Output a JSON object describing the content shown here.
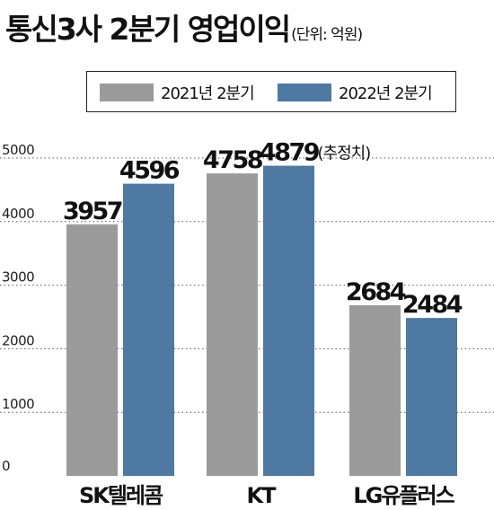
{
  "chart_data": {
    "type": "bar",
    "title": "통신3사 2분기 영업이익",
    "unit": "(단위: 억원)",
    "categories": [
      "SK텔레콤",
      "KT",
      "LG유플러스"
    ],
    "series": [
      {
        "name": "2021년 2분기",
        "color": "#9b9b9b",
        "values": [
          3957,
          4758,
          2684
        ]
      },
      {
        "name": "2022년 2분기",
        "color": "#4d79a3",
        "values": [
          4596,
          4879,
          2484
        ]
      }
    ],
    "annotations": [
      {
        "category": "KT",
        "series": "2022년 2분기",
        "text": "(추정치)"
      }
    ],
    "yticks": [
      0,
      1000,
      2000,
      3000,
      4000,
      5000
    ],
    "ylim": [
      0,
      5000
    ],
    "grid": "horizontal-dotted",
    "legend": "top-boxed"
  }
}
